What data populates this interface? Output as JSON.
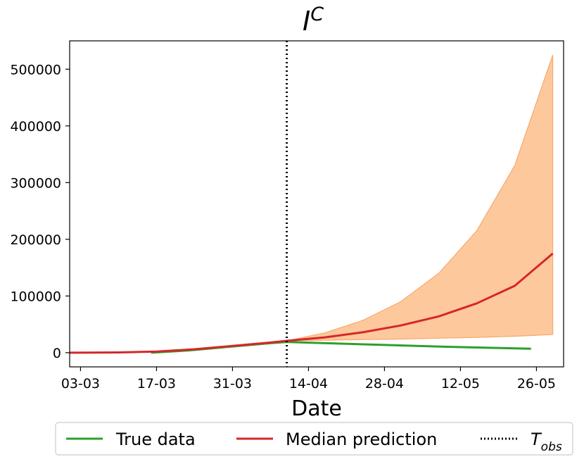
{
  "chart_data": {
    "type": "line",
    "title_base": "I",
    "title_sup": "C",
    "xlabel": "Date",
    "ylabel": "",
    "x_ticks": [
      "03-03",
      "17-03",
      "31-03",
      "14-04",
      "28-04",
      "12-05",
      "26-05"
    ],
    "y_ticks": [
      "0",
      "100000",
      "200000",
      "300000",
      "400000",
      "500000"
    ],
    "ylim": [
      -25000,
      550000
    ],
    "xlim_dates": [
      "2020-03-01",
      "2020-05-31"
    ],
    "t_obs_date": "2020-04-10",
    "grid": false,
    "legend_position": "bottom",
    "legend": {
      "true_data": "True data",
      "median": "Median prediction",
      "t_obs_base": "T",
      "t_obs_sub": "obs"
    },
    "colors": {
      "true_data": "#2ca02c",
      "median": "#d62728",
      "band_fill": "#fdc89c",
      "band_edge": "#f9a86a",
      "t_obs": "#000000"
    },
    "series": [
      {
        "name": "True data",
        "x": [
          "2020-03-16",
          "2020-03-23",
          "2020-03-30",
          "2020-04-06",
          "2020-04-10",
          "2020-04-13",
          "2020-04-20",
          "2020-04-27",
          "2020-05-04",
          "2020-05-11",
          "2020-05-18",
          "2020-05-25"
        ],
        "values": [
          0,
          4000,
          10000,
          16000,
          19000,
          18000,
          16000,
          14000,
          12000,
          10000,
          8500,
          7000
        ]
      },
      {
        "name": "Median prediction",
        "x": [
          "2020-03-01",
          "2020-03-10",
          "2020-03-17",
          "2020-03-24",
          "2020-03-31",
          "2020-04-07",
          "2020-04-10",
          "2020-04-17",
          "2020-04-24",
          "2020-05-01",
          "2020-05-08",
          "2020-05-15",
          "2020-05-22",
          "2020-05-29"
        ],
        "values": [
          0,
          500,
          2000,
          6000,
          12000,
          18000,
          21000,
          27000,
          36000,
          48000,
          64000,
          87000,
          118000,
          175000
        ]
      }
    ],
    "band": {
      "x": [
        "2020-04-10",
        "2020-04-17",
        "2020-04-24",
        "2020-05-01",
        "2020-05-08",
        "2020-05-15",
        "2020-05-22",
        "2020-05-29"
      ],
      "lower": [
        21000,
        22000,
        23000,
        24000,
        25500,
        27000,
        29000,
        32000
      ],
      "upper": [
        21000,
        35000,
        57000,
        90000,
        140000,
        215000,
        330000,
        525000
      ]
    }
  }
}
